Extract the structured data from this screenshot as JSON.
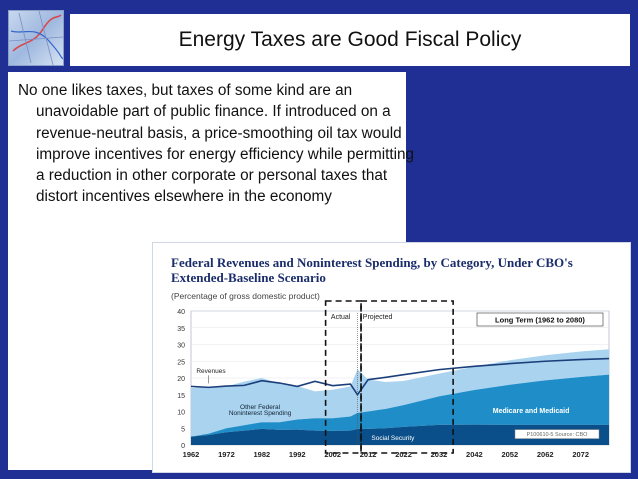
{
  "slide": {
    "title": "Energy Taxes are Good Fiscal Policy",
    "bullet": "No one likes taxes, but taxes of some kind are an unavoidable part of public finance. If introduced on a revenue-neutral basis, a price-smoothing oil tax would improve incentives for energy efficiency while permitting a reduction in other corporate or personal taxes that distort incentives elsewhere in the economy"
  },
  "chart_data": {
    "type": "area",
    "title": "Federal Revenues and Noninterest Spending, by Category, Under CBO's Extended-Baseline Scenario",
    "subtitle": "(Percentage of gross domestic product)",
    "x_ticks": [
      "1962",
      "1972",
      "1982",
      "1992",
      "2002",
      "2012",
      "2022",
      "2032",
      "2042",
      "2052",
      "2062",
      "2072"
    ],
    "y_ticks": [
      "0",
      "5",
      "10",
      "15",
      "20",
      "25",
      "30",
      "35",
      "40"
    ],
    "ylim": [
      0,
      40
    ],
    "xlim": [
      1962,
      2080
    ],
    "labels": {
      "actual": "Actual",
      "projected": "Projected",
      "long_term": "Long Term (1962 to 2080)",
      "revenues": "Revenues",
      "other_federal": "Other Federal",
      "noninterest": "Noninterest Spending",
      "medicare": "Medicare and Medicaid",
      "social_security": "Social Security",
      "source": "P100610-5 Source: CBO"
    },
    "x": [
      1962,
      1967,
      1972,
      1977,
      1982,
      1987,
      1992,
      1997,
      2002,
      2007,
      2009,
      2012,
      2017,
      2022,
      2032,
      2042,
      2052,
      2062,
      2072,
      2080
    ],
    "series": [
      {
        "name": "Social Security",
        "values": [
          2.5,
          3.0,
          3.8,
          4.3,
          4.8,
          4.5,
          4.6,
          4.3,
          4.2,
          4.3,
          4.8,
          4.8,
          5.0,
          5.4,
          6.0,
          6.1,
          6.0,
          6.0,
          6.0,
          6.0
        ]
      },
      {
        "name": "Medicare and Medicaid",
        "values": [
          0.0,
          0.4,
          1.2,
          1.6,
          2.0,
          2.3,
          3.0,
          3.7,
          3.8,
          4.2,
          4.8,
          5.2,
          5.8,
          6.5,
          8.5,
          10.3,
          12.0,
          13.3,
          14.3,
          15.0
        ]
      },
      {
        "name": "Other Federal Noninterest Spending",
        "values": [
          14.5,
          14.0,
          12.5,
          13.0,
          13.2,
          11.5,
          10.0,
          8.0,
          8.5,
          9.0,
          13.0,
          9.5,
          8.0,
          7.2,
          6.8,
          7.0,
          7.3,
          7.5,
          7.6,
          7.6
        ]
      },
      {
        "name": "Revenues",
        "values": [
          17.5,
          17.2,
          17.6,
          17.8,
          19.2,
          18.5,
          17.5,
          19.0,
          17.7,
          18.2,
          15.0,
          19.5,
          20.2,
          21.0,
          22.5,
          23.5,
          24.3,
          25.0,
          25.5,
          25.8
        ]
      }
    ]
  }
}
